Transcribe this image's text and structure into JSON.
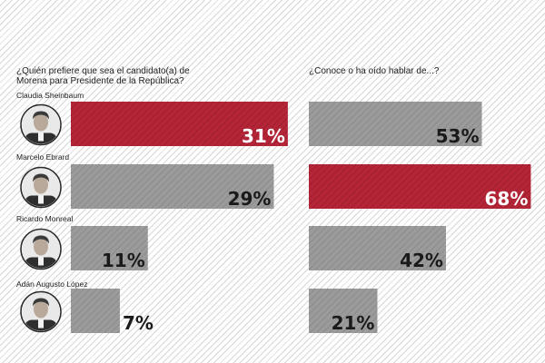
{
  "chart_data": [
    {
      "type": "bar",
      "orientation": "horizontal",
      "title": "¿Quién prefiere que sea el candidato(a) de Morena para Presidente de la República?",
      "categories": [
        "Claudia Sheinbaum",
        "Marcelo Ebrard",
        "Ricardo Monreal",
        "Adán Augusto  López"
      ],
      "values": [
        31,
        29,
        11,
        7
      ],
      "value_suffix": "%",
      "highlight_index": 0,
      "xlim": [
        0,
        34
      ]
    },
    {
      "type": "bar",
      "orientation": "horizontal",
      "title": "¿Conoce o ha oído hablar de...?",
      "categories": [
        "Claudia Sheinbaum",
        "Marcelo Ebrard",
        "Ricardo Monreal",
        "Adán Augusto  López"
      ],
      "values": [
        53,
        68,
        42,
        21
      ],
      "value_suffix": "%",
      "highlight_index": 1,
      "xlim": [
        0,
        69
      ]
    }
  ],
  "colors": {
    "highlight": "#b52538",
    "highlight_stripe": "#9e1e30",
    "default": "#9b9b9b",
    "default_stripe": "#8a8a8a",
    "highlight_text": "#ffffff",
    "default_text": "#1a1a1a"
  },
  "icons": [
    "avatar-icon"
  ]
}
